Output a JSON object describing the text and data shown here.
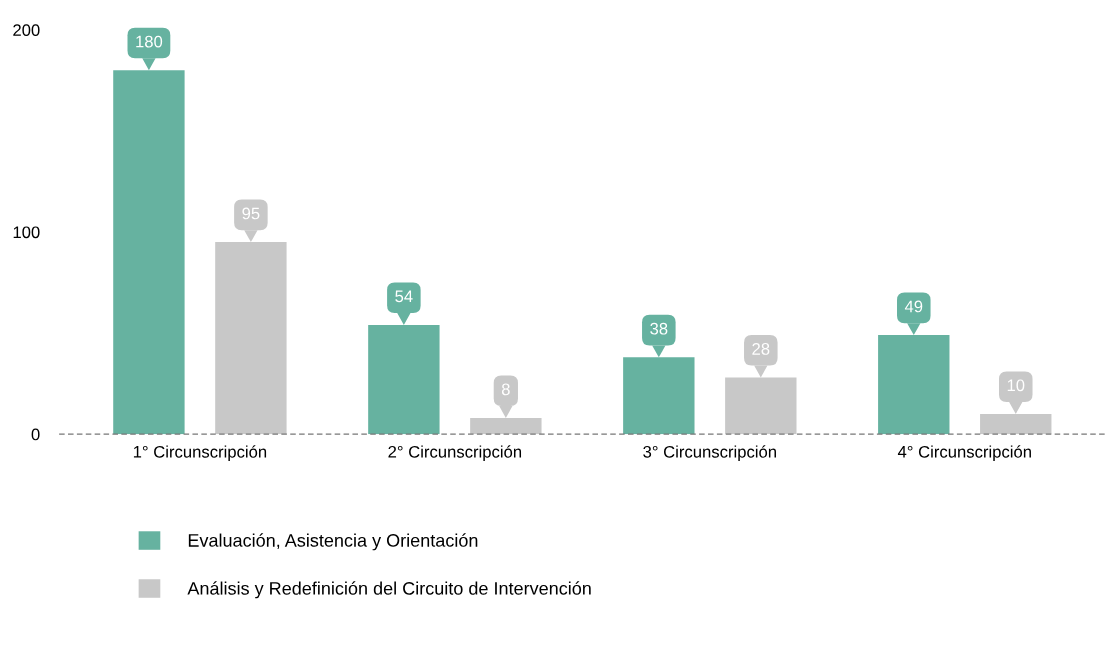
{
  "chart_data": {
    "type": "bar",
    "categories": [
      "1° Circunscripción",
      "2° Circunscripción",
      "3° Circunscripción",
      "4° Circunscripción"
    ],
    "series": [
      {
        "name": "Evaluación, Asistencia y Orientación",
        "color": "#66b2a0",
        "values": [
          180,
          54,
          38,
          49
        ]
      },
      {
        "name": "Análisis y Redefinición del Circuito de Intervención",
        "color": "#c8c8c8",
        "values": [
          95,
          8,
          28,
          10
        ]
      }
    ],
    "ylim": [
      0,
      200
    ],
    "yticks": [
      0,
      100,
      200
    ],
    "grid": false,
    "legend": "bottom",
    "data_labels": true
  }
}
